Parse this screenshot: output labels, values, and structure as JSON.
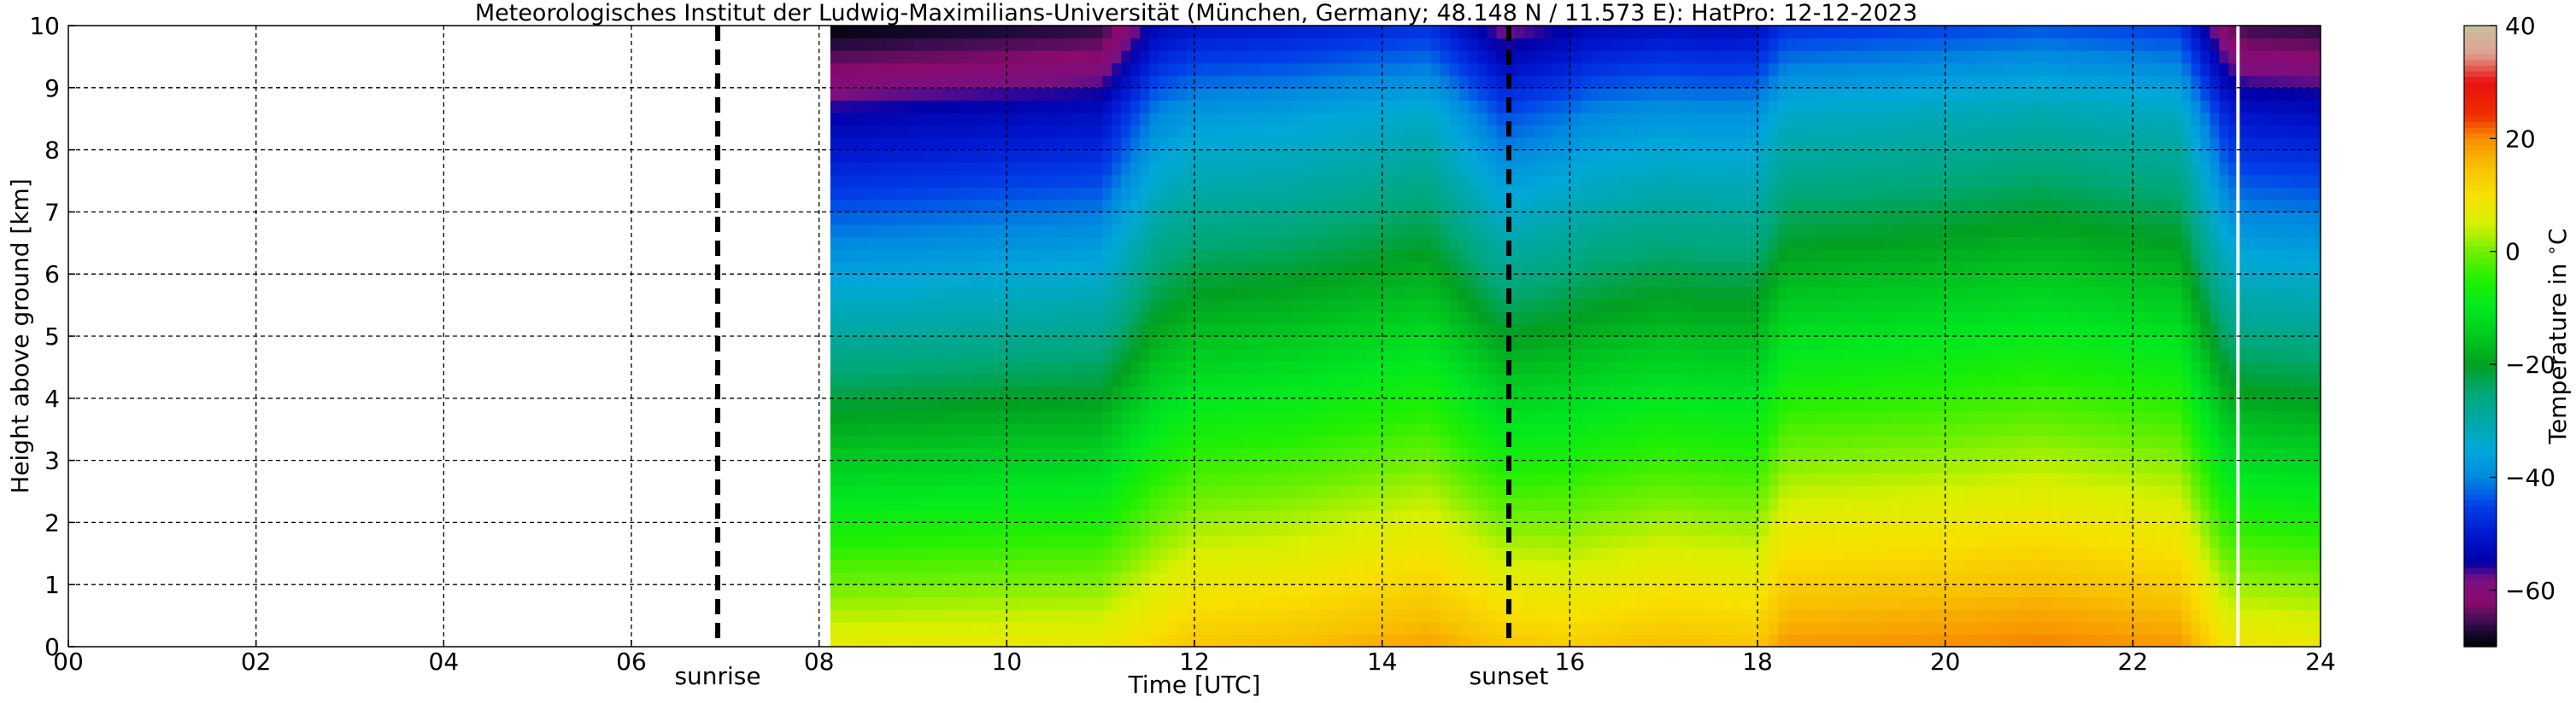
{
  "title": "Meteorologisches Institut der Ludwig-Maximilians-Universität (München, Germany; 48.148 N / 11.573 E):    HatPro: 12-12-2023",
  "chart_data": {
    "type": "heatmap",
    "title": "Meteorologisches Institut der Ludwig-Maximilians-Universität (München, Germany; 48.148 N / 11.573 E):    HatPro: 12-12-2023",
    "xlabel": "Time [UTC]",
    "ylabel": "Height above ground [km]",
    "xlim": [
      0,
      24
    ],
    "ylim": [
      0,
      10
    ],
    "x_ticks": [
      "00",
      "02",
      "04",
      "06",
      "08",
      "10",
      "12",
      "14",
      "16",
      "18",
      "20",
      "22",
      "24"
    ],
    "y_ticks": [
      "0",
      "1",
      "2",
      "3",
      "4",
      "5",
      "6",
      "7",
      "8",
      "9",
      "10"
    ],
    "grid": true,
    "data_start_hour": 8.12,
    "data_end_hour": 24.0,
    "gap_line_hour": 23.12,
    "events": [
      {
        "label": "sunrise",
        "hour": 6.92
      },
      {
        "label": "sunset",
        "hour": 15.35
      }
    ],
    "colorbar": {
      "label": "Temperature in $^\\circ$C",
      "range": [
        -70,
        40
      ],
      "ticks": [
        "40",
        "20",
        "0",
        "−20",
        "−40",
        "−60"
      ],
      "stops": [
        {
          "t": -70,
          "color": "#000000"
        },
        {
          "t": -67,
          "color": "#1c0a3a"
        },
        {
          "t": -65,
          "color": "#4a0e57"
        },
        {
          "t": -62,
          "color": "#8a0a6e"
        },
        {
          "t": -58,
          "color": "#7a1080"
        },
        {
          "t": -55,
          "color": "#0000a8"
        },
        {
          "t": -50,
          "color": "#0018d0"
        },
        {
          "t": -45,
          "color": "#0040e8"
        },
        {
          "t": -40,
          "color": "#0088e0"
        },
        {
          "t": -35,
          "color": "#00a8d8"
        },
        {
          "t": -30,
          "color": "#00a8a8"
        },
        {
          "t": -25,
          "color": "#00a878"
        },
        {
          "t": -20,
          "color": "#00a020"
        },
        {
          "t": -15,
          "color": "#00c820"
        },
        {
          "t": -10,
          "color": "#00e820"
        },
        {
          "t": -5,
          "color": "#20f000"
        },
        {
          "t": 0,
          "color": "#70f000"
        },
        {
          "t": 5,
          "color": "#d8f000"
        },
        {
          "t": 10,
          "color": "#f8e000"
        },
        {
          "t": 15,
          "color": "#f8c000"
        },
        {
          "t": 20,
          "color": "#f89000"
        },
        {
          "t": 24,
          "color": "#f03000"
        },
        {
          "t": 30,
          "color": "#e81010"
        },
        {
          "t": 35,
          "color": "#e0a090"
        },
        {
          "t": 40,
          "color": "#c8c0a0"
        }
      ]
    },
    "temperature_profile": {
      "surface_by_hour": [
        {
          "h": 8.1,
          "t": 7
        },
        {
          "h": 11.0,
          "t": 8
        },
        {
          "h": 11.5,
          "t": 11
        },
        {
          "h": 12.0,
          "t": 14
        },
        {
          "h": 13.0,
          "t": 15
        },
        {
          "h": 14.0,
          "t": 17
        },
        {
          "h": 14.5,
          "t": 18
        },
        {
          "h": 15.3,
          "t": 14
        },
        {
          "h": 16.0,
          "t": 13
        },
        {
          "h": 17.0,
          "t": 15
        },
        {
          "h": 18.0,
          "t": 14
        },
        {
          "h": 18.3,
          "t": 19
        },
        {
          "h": 20.0,
          "t": 20
        },
        {
          "h": 21.0,
          "t": 21
        },
        {
          "h": 22.5,
          "t": 19
        },
        {
          "h": 23.0,
          "t": 9
        },
        {
          "h": 24.0,
          "t": 8
        }
      ],
      "lapse_by_hour": [
        {
          "h": 8.1,
          "t": 7.2
        },
        {
          "h": 11.0,
          "t": 7.0
        },
        {
          "h": 11.6,
          "t": 6.0
        },
        {
          "h": 13.0,
          "t": 6.0
        },
        {
          "h": 14.5,
          "t": 6.0
        },
        {
          "h": 15.3,
          "t": 6.8
        },
        {
          "h": 16.2,
          "t": 6.2
        },
        {
          "h": 17.5,
          "t": 6.2
        },
        {
          "h": 18.1,
          "t": 6.1
        },
        {
          "h": 21.0,
          "t": 6.0
        },
        {
          "h": 22.5,
          "t": 6.0
        },
        {
          "h": 23.2,
          "t": 7.0
        },
        {
          "h": 24.0,
          "t": 7.0
        }
      ]
    }
  }
}
